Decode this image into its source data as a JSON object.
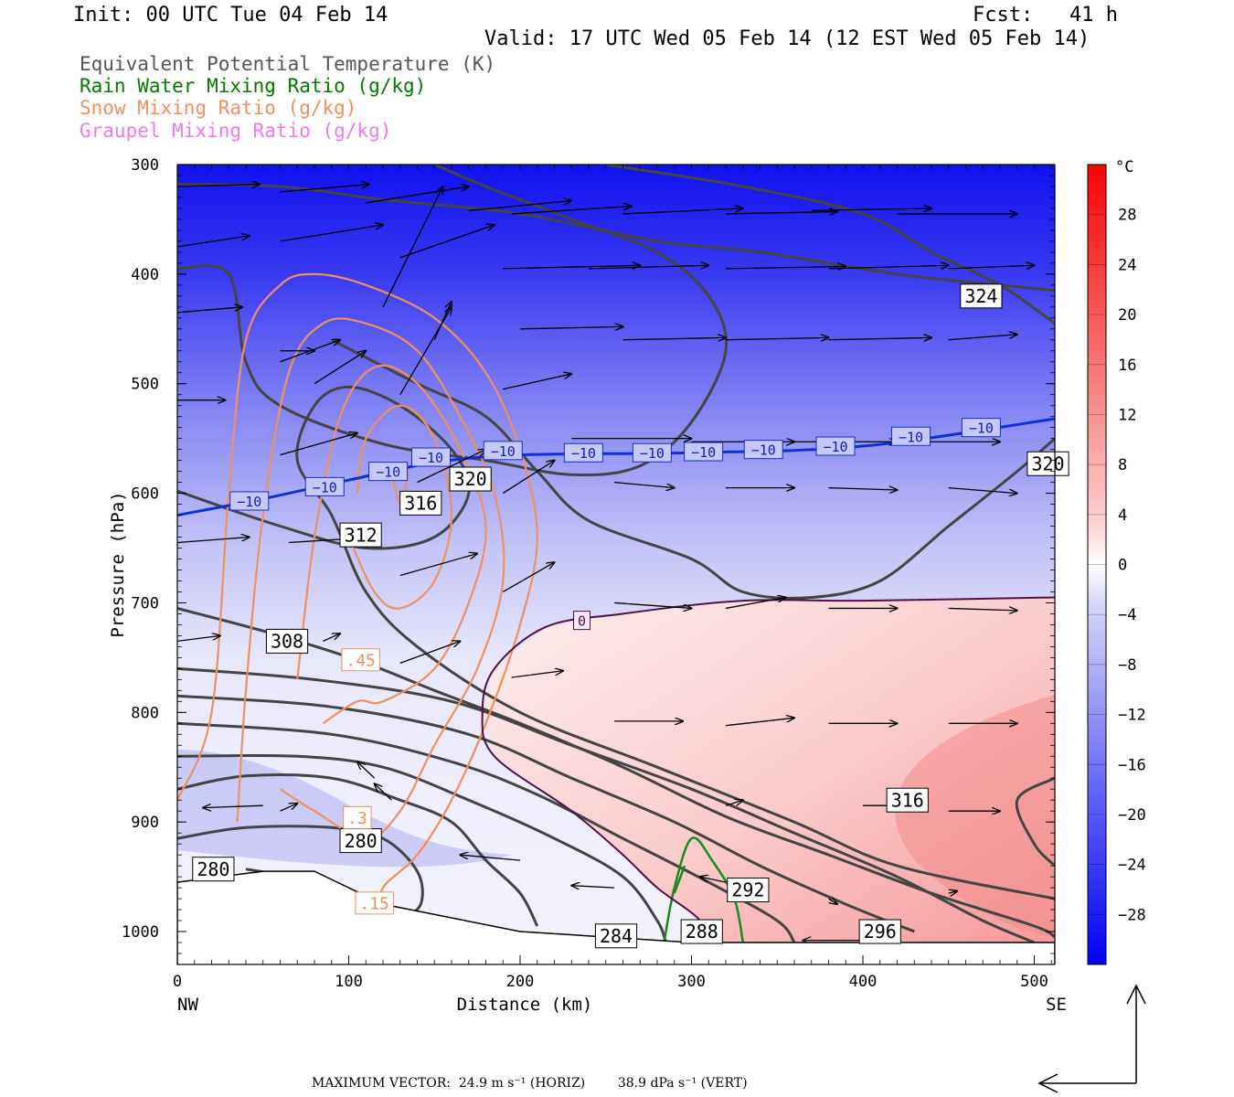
{
  "header": {
    "init": "Init: 00 UTC Tue 04 Feb 14",
    "fcst": "Fcst:   41 h",
    "valid": "Valid: 17 UTC Wed 05 Feb 14 (12 EST Wed 05 Feb 14)"
  },
  "legend": [
    {
      "text": "Equivalent Potential Temperature (K)",
      "color": "#555555"
    },
    {
      "text": "Rain Water Mixing Ratio (g/kg)",
      "color": "#007a00"
    },
    {
      "text": "Snow Mixing Ratio (g/kg)",
      "color": "#ef9060"
    },
    {
      "text": "Graupel Mixing Ratio (g/kg)",
      "color": "#ee7aee"
    }
  ],
  "footer": {
    "max_vector": "MAXIMUM VECTOR:  24.9 m s⁻¹ (HORIZ)        38.9 dPa s⁻¹ (VERT)"
  },
  "chart_data": {
    "type": "cross-section",
    "xlabel": "Distance (km)",
    "ylabel": "Pressure (hPa)",
    "xlim": [
      0,
      512
    ],
    "ylim": [
      1030,
      300
    ],
    "x_ticks": [
      0,
      100,
      200,
      300,
      400,
      500
    ],
    "y_ticks": [
      300,
      400,
      500,
      600,
      700,
      800,
      900,
      1000
    ],
    "x_end_labels": {
      "left": "NW",
      "right": "SE"
    },
    "colorbar": {
      "unit": "°C",
      "ticks": [
        28,
        24,
        20,
        16,
        12,
        8,
        4,
        0,
        -4,
        -8,
        -12,
        -16,
        -20,
        -24,
        -28
      ],
      "range": [
        -32,
        32
      ]
    },
    "temperature_contour": {
      "label": "-10",
      "color": "#1030d0",
      "points": [
        [
          0,
          620
        ],
        [
          50,
          605
        ],
        [
          100,
          588
        ],
        [
          150,
          572
        ],
        [
          200,
          565
        ],
        [
          300,
          563
        ],
        [
          400,
          557
        ],
        [
          512,
          532
        ]
      ]
    },
    "freezing_line": {
      "label": "0",
      "color": "#50104a",
      "points": [
        [
          512,
          695
        ],
        [
          400,
          698
        ],
        [
          330,
          698
        ],
        [
          260,
          710
        ],
        [
          215,
          722
        ],
        [
          185,
          760
        ],
        [
          178,
          800
        ],
        [
          185,
          840
        ],
        [
          230,
          890
        ],
        [
          260,
          930
        ],
        [
          280,
          960
        ],
        [
          305,
          990
        ],
        [
          305,
          1010
        ]
      ]
    },
    "theta_e_labels": [
      {
        "label": "324",
        "x": 469,
        "p": 420
      },
      {
        "label": "320",
        "x": 508,
        "p": 573
      },
      {
        "label": "320",
        "x": 171,
        "p": 587
      },
      {
        "label": "316",
        "x": 142,
        "p": 609
      },
      {
        "label": "312",
        "x": 107,
        "p": 638
      },
      {
        "label": "308",
        "x": 64,
        "p": 735
      },
      {
        "label": "316",
        "x": 426,
        "p": 880
      },
      {
        "label": "280",
        "x": 107,
        "p": 917
      },
      {
        "label": "280",
        "x": 21,
        "p": 943
      },
      {
        "label": "292",
        "x": 333,
        "p": 962
      },
      {
        "label": "296",
        "x": 410,
        "p": 1000
      },
      {
        "label": "288",
        "x": 306,
        "p": 1000
      },
      {
        "label": "284",
        "x": 256,
        "p": 1004
      }
    ],
    "snow_labels": [
      {
        "label": ".45",
        "x": 107,
        "p": 752
      },
      {
        "label": ".3",
        "x": 105,
        "p": 896
      },
      {
        "label": ".15",
        "x": 115,
        "p": 974
      }
    ],
    "rain_contour_label_count": 0,
    "terrain_pressure": [
      [
        0,
        955
      ],
      [
        50,
        945
      ],
      [
        80,
        945
      ],
      [
        120,
        975
      ],
      [
        200,
        1000
      ],
      [
        300,
        1010
      ],
      [
        400,
        1010
      ],
      [
        512,
        1010
      ]
    ]
  }
}
